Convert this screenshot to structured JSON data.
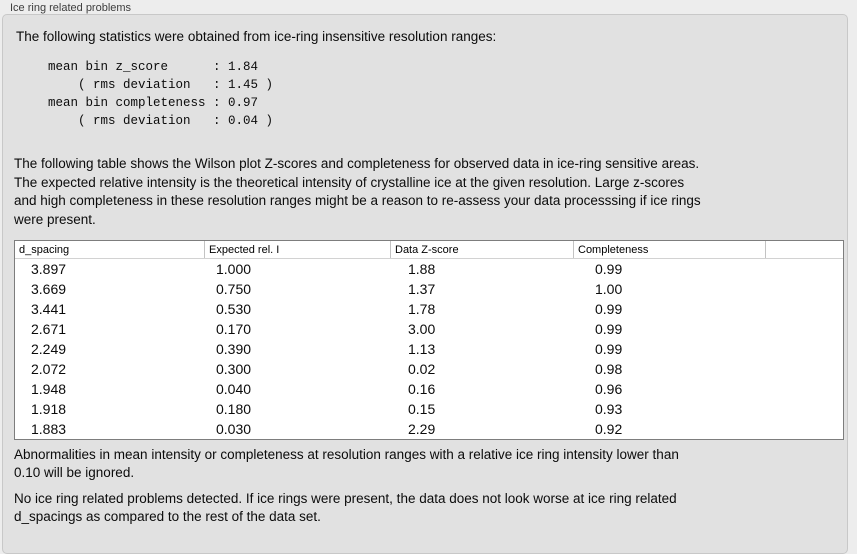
{
  "panel": {
    "title": "Ice ring related problems"
  },
  "stats": {
    "intro": "The following statistics were obtained from ice-ring insensitive resolution ranges:",
    "block_lines": [
      "mean bin z_score      : 1.84",
      "    ( rms deviation   : 1.45 )",
      "mean bin completeness : 0.97",
      "    ( rms deviation   : 0.04 )"
    ]
  },
  "description_lines": [
    "The following table shows the Wilson plot Z-scores and completeness for observed data in ice-ring sensitive areas.",
    "The expected relative intensity is the theoretical intensity of crystalline ice at the given resolution. Large z-scores",
    "and high completeness in these resolution ranges might be a reason to re-assess your data processsing if ice rings",
    "were present."
  ],
  "table": {
    "columns": [
      "d_spacing",
      "Expected rel. I",
      "Data Z-score",
      "Completeness",
      ""
    ],
    "rows": [
      [
        "3.897",
        "1.000",
        "1.88",
        "0.99"
      ],
      [
        "3.669",
        "0.750",
        "1.37",
        "1.00"
      ],
      [
        "3.441",
        "0.530",
        "1.78",
        "0.99"
      ],
      [
        "2.671",
        "0.170",
        "3.00",
        "0.99"
      ],
      [
        "2.249",
        "0.390",
        "1.13",
        "0.99"
      ],
      [
        "2.072",
        "0.300",
        "0.02",
        "0.98"
      ],
      [
        "1.948",
        "0.040",
        "0.16",
        "0.96"
      ],
      [
        "1.918",
        "0.180",
        "0.15",
        "0.93"
      ],
      [
        "1.883",
        "0.030",
        "2.29",
        "0.92"
      ]
    ]
  },
  "notes_lines": [
    "Abnormalities in mean intensity or completeness at resolution ranges with a relative ice ring intensity lower than",
    "0.10 will be ignored."
  ],
  "conclusion_lines": [
    "No ice ring related problems detected. If ice rings were present, the data does not look worse at ice ring related",
    "d_spacings as compared to the rest of the data set."
  ]
}
